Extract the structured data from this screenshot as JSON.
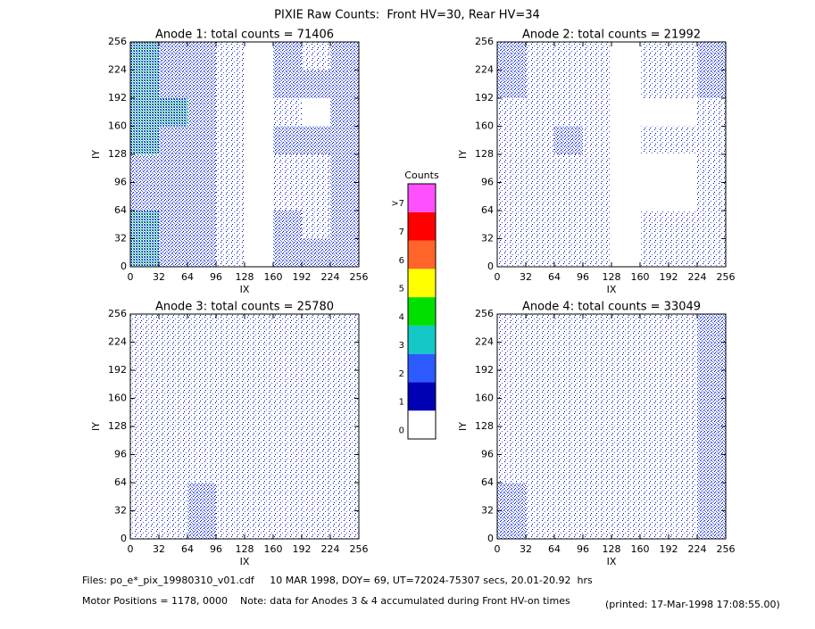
{
  "title": "PIXIE Raw Counts:  Front HV=30, Rear HV=34",
  "chart_data": [
    {
      "type": "heatmap",
      "title": "Anode 1: total counts = 71406",
      "xlabel": "IX",
      "ylabel": "IY",
      "xlim": [
        0,
        256
      ],
      "ylim": [
        0,
        256
      ],
      "xticks": [
        0,
        32,
        64,
        96,
        128,
        160,
        192,
        224,
        256
      ],
      "yticks": [
        0,
        32,
        64,
        96,
        128,
        160,
        192,
        224,
        256
      ],
      "values": [
        [
          3,
          2,
          2,
          1,
          0,
          2,
          1,
          2
        ],
        [
          3,
          2,
          2,
          1,
          0,
          2,
          2,
          2
        ],
        [
          3,
          3,
          2,
          1,
          0,
          1,
          0,
          2
        ],
        [
          3,
          2,
          2,
          1,
          0,
          2,
          2,
          2
        ],
        [
          2,
          2,
          2,
          1,
          0,
          1,
          1,
          2
        ],
        [
          2,
          2,
          2,
          1,
          0,
          1,
          1,
          2
        ],
        [
          3,
          2,
          2,
          1,
          0,
          2,
          1,
          2
        ],
        [
          3,
          2,
          2,
          1,
          0,
          2,
          2,
          2
        ]
      ]
    },
    {
      "type": "heatmap",
      "title": "Anode 2: total counts = 21992",
      "xlabel": "IX",
      "ylabel": "IY",
      "xlim": [
        0,
        256
      ],
      "ylim": [
        0,
        256
      ],
      "xticks": [
        0,
        32,
        64,
        96,
        128,
        160,
        192,
        224,
        256
      ],
      "yticks": [
        0,
        32,
        64,
        96,
        128,
        160,
        192,
        224,
        256
      ],
      "values": [
        [
          2,
          1,
          1,
          1,
          0,
          1,
          1,
          2
        ],
        [
          2,
          1,
          1,
          1,
          0,
          1,
          1,
          2
        ],
        [
          1,
          1,
          1,
          1,
          0,
          0,
          0,
          1
        ],
        [
          1,
          1,
          2,
          1,
          0,
          1,
          1,
          1
        ],
        [
          1,
          1,
          1,
          1,
          0,
          0,
          0,
          1
        ],
        [
          1,
          1,
          1,
          1,
          0,
          0,
          0,
          1
        ],
        [
          1,
          1,
          1,
          1,
          0,
          1,
          1,
          1
        ],
        [
          1,
          1,
          1,
          1,
          0,
          1,
          1,
          1
        ]
      ]
    },
    {
      "type": "heatmap",
      "title": "Anode 3: total counts = 25780",
      "xlabel": "IX",
      "ylabel": "IY",
      "xlim": [
        0,
        256
      ],
      "ylim": [
        0,
        256
      ],
      "xticks": [
        0,
        32,
        64,
        96,
        128,
        160,
        192,
        224,
        256
      ],
      "yticks": [
        0,
        32,
        64,
        96,
        128,
        160,
        192,
        224,
        256
      ],
      "values": [
        [
          1,
          1,
          1,
          1,
          1,
          1,
          1,
          1
        ],
        [
          1,
          1,
          1,
          1,
          1,
          1,
          1,
          1
        ],
        [
          1,
          1,
          1,
          1,
          1,
          1,
          1,
          1
        ],
        [
          1,
          1,
          1,
          1,
          1,
          1,
          1,
          1
        ],
        [
          1,
          1,
          1,
          1,
          1,
          1,
          1,
          1
        ],
        [
          1,
          1,
          1,
          1,
          1,
          1,
          1,
          1
        ],
        [
          1,
          1,
          2,
          1,
          1,
          1,
          1,
          1
        ],
        [
          1,
          1,
          2,
          1,
          1,
          1,
          1,
          1
        ]
      ]
    },
    {
      "type": "heatmap",
      "title": "Anode 4: total counts = 33049",
      "xlabel": "IX",
      "ylabel": "IY",
      "xlim": [
        0,
        256
      ],
      "ylim": [
        0,
        256
      ],
      "xticks": [
        0,
        32,
        64,
        96,
        128,
        160,
        192,
        224,
        256
      ],
      "yticks": [
        0,
        32,
        64,
        96,
        128,
        160,
        192,
        224,
        256
      ],
      "values": [
        [
          1,
          1,
          1,
          1,
          1,
          1,
          1,
          2
        ],
        [
          1,
          1,
          1,
          1,
          1,
          1,
          1,
          2
        ],
        [
          1,
          1,
          1,
          1,
          1,
          1,
          1,
          2
        ],
        [
          1,
          1,
          1,
          1,
          1,
          1,
          1,
          2
        ],
        [
          1,
          1,
          1,
          1,
          1,
          1,
          1,
          2
        ],
        [
          1,
          1,
          1,
          1,
          1,
          1,
          1,
          2
        ],
        [
          2,
          1,
          1,
          1,
          1,
          1,
          1,
          2
        ],
        [
          2,
          1,
          1,
          1,
          1,
          1,
          1,
          2
        ]
      ]
    }
  ],
  "colorbar": {
    "title": "Counts",
    "labels": [
      0,
      1,
      2,
      3,
      4,
      5,
      6,
      7,
      ">7"
    ],
    "colors": [
      "#ffffff",
      "#0000b4",
      "#2d5aff",
      "#14c8c8",
      "#00e000",
      "#ffff00",
      "#ff6428",
      "#ff0000",
      "#ff50ff"
    ]
  },
  "footer": {
    "files": "Files: po_e*_pix_19980310_v01.cdf     10 MAR 1998, DOY= 69, UT=72024-75307 secs, 20.01-20.92  hrs",
    "motor": "Motor Positions = 1178, 0000    Note: data for Anodes 3 & 4 accumulated during Front HV-on times",
    "printed": "(printed: 17-Mar-1998 17:08:55.00)"
  }
}
